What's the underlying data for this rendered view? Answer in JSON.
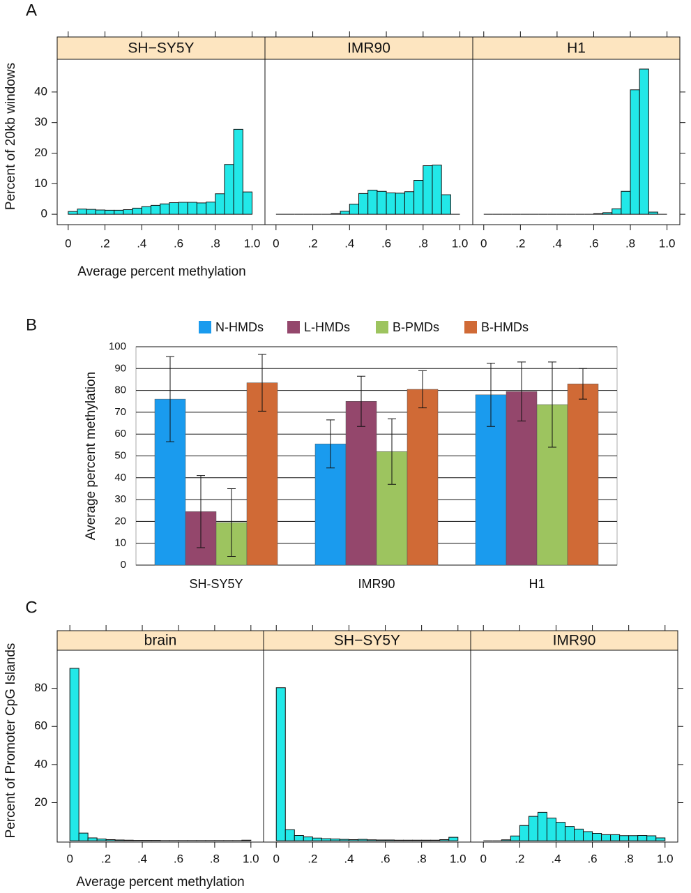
{
  "chart_data": [
    {
      "type": "histogram",
      "panel_label": "A",
      "ylabel": "Percent of 20kb windows",
      "xlabel": "Average percent methylation",
      "color": "#22e8e8",
      "strip_color": "#fde5c0",
      "bins": [
        0,
        0.05,
        0.1,
        0.15,
        0.2,
        0.25,
        0.3,
        0.35,
        0.4,
        0.45,
        0.5,
        0.55,
        0.6,
        0.65,
        0.7,
        0.75,
        0.8,
        0.85,
        0.9,
        0.95,
        1.0
      ],
      "xlim": [
        -0.06,
        1.07
      ],
      "xticks": [
        0,
        {
          "value": 0.2,
          "label": ".2"
        },
        {
          "value": 0.4,
          "label": ".4"
        },
        {
          "value": 0.6,
          "label": ".6"
        },
        {
          "value": 0.8,
          "label": ".8"
        },
        {
          "value": 1.0,
          "label": "1.0"
        }
      ],
      "ylim": [
        -3.4,
        50.7
      ],
      "yticks": [
        0,
        10,
        20,
        30,
        40
      ],
      "panels": [
        {
          "title": "SH−SY5Y",
          "values": [
            0.9,
            1.7,
            1.6,
            1.4,
            1.3,
            1.3,
            1.5,
            2.0,
            2.5,
            2.9,
            3.4,
            3.8,
            3.9,
            3.9,
            3.7,
            4.0,
            6.7,
            16.3,
            27.8,
            7.3
          ]
        },
        {
          "title": "IMR90",
          "values": [
            0,
            0,
            0,
            0,
            0,
            0,
            0.2,
            1.0,
            3.3,
            6.8,
            7.9,
            7.5,
            7.0,
            6.9,
            7.4,
            11.1,
            15.9,
            16.1,
            6.4,
            0
          ]
        },
        {
          "title": "H1",
          "values": [
            0,
            0,
            0,
            0,
            0,
            0,
            0,
            0,
            0,
            0,
            0,
            0,
            0.2,
            0.5,
            1.8,
            7.5,
            40.7,
            47.5,
            0.7,
            0
          ]
        }
      ]
    },
    {
      "type": "bar",
      "panel_label": "B",
      "ylabel": "Average percent methylation",
      "categories": [
        "SH-SY5Y",
        "IMR90",
        "H1"
      ],
      "series": [
        {
          "name": "N-HMDs",
          "color": "#1a9bee",
          "values": [
            76,
            55.5,
            78
          ],
          "errors": [
            19.5,
            11,
            14.5
          ]
        },
        {
          "name": "L-HMDs",
          "color": "#94476c",
          "values": [
            24.5,
            75,
            79.5
          ],
          "errors": [
            16.5,
            11.5,
            13.5
          ]
        },
        {
          "name": "B-PMDs",
          "color": "#9dc45f",
          "values": [
            19.5,
            52,
            73.5
          ],
          "errors": [
            15.5,
            15,
            19.5
          ]
        },
        {
          "name": "B-HMDs",
          "color": "#d06a36",
          "values": [
            83.5,
            80.5,
            83
          ],
          "errors": [
            13,
            8.5,
            7
          ]
        }
      ],
      "ylim": [
        0,
        100
      ],
      "yticks": [
        0,
        10,
        20,
        30,
        40,
        50,
        60,
        70,
        80,
        90,
        100
      ],
      "grid": true
    },
    {
      "type": "histogram",
      "panel_label": "C",
      "ylabel": "Percent of Promoter CpG Islands",
      "xlabel": "Average percent methylation",
      "color": "#22e8e8",
      "strip_color": "#fde5c0",
      "bins": [
        0,
        0.05,
        0.1,
        0.15,
        0.2,
        0.25,
        0.3,
        0.35,
        0.4,
        0.45,
        0.5,
        0.55,
        0.6,
        0.65,
        0.7,
        0.75,
        0.8,
        0.85,
        0.9,
        0.95,
        1.0
      ],
      "xlim": [
        -0.07,
        1.07
      ],
      "xticks": [
        0,
        {
          "value": 0.2,
          "label": ".2"
        },
        {
          "value": 0.4,
          "label": ".4"
        },
        {
          "value": 0.6,
          "label": ".6"
        },
        {
          "value": 0.8,
          "label": ".8"
        },
        {
          "value": 1.0,
          "label": "1.0"
        }
      ],
      "ylim": [
        -0.7,
        100
      ],
      "yticks": [
        20,
        40,
        60,
        80
      ],
      "panels": [
        {
          "title": "brain",
          "values": [
            90.5,
            4.0,
            1.5,
            0.9,
            0.6,
            0.4,
            0.3,
            0.2,
            0.2,
            0.2,
            0.1,
            0.1,
            0.1,
            0.1,
            0.1,
            0.1,
            0.1,
            0.1,
            0.1,
            0.3
          ]
        },
        {
          "title": "SH−SY5Y",
          "values": [
            80.3,
            5.8,
            2.8,
            2.0,
            1.4,
            1.1,
            0.9,
            0.7,
            0.6,
            0.7,
            0.5,
            0.4,
            0.4,
            0.3,
            0.3,
            0.3,
            0.3,
            0.3,
            0.6,
            1.8
          ]
        },
        {
          "title": "IMR90",
          "values": [
            0,
            0,
            0.5,
            2.5,
            8.0,
            12.8,
            14.9,
            11.9,
            9.7,
            7.5,
            6.1,
            4.8,
            3.9,
            3.2,
            3.2,
            2.7,
            2.7,
            2.8,
            2.6,
            1.5
          ]
        }
      ]
    }
  ]
}
